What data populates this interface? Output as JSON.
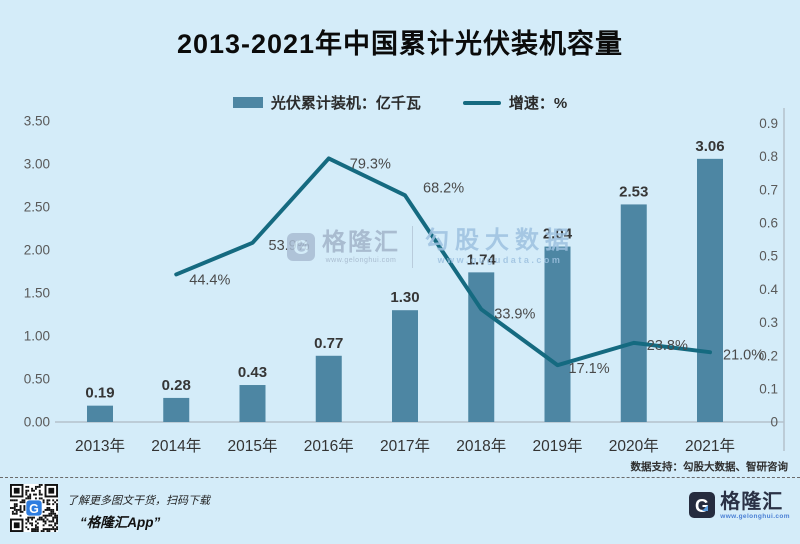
{
  "title": "2013-2021年中国累计光伏装机容量",
  "legend": {
    "bar_label": "光伏累计装机：亿千瓦",
    "line_label": "增速：%"
  },
  "chart_data": {
    "type": "bar+line",
    "categories": [
      "2013年",
      "2014年",
      "2015年",
      "2016年",
      "2017年",
      "2018年",
      "2019年",
      "2020年",
      "2021年"
    ],
    "series": [
      {
        "name": "光伏累计装机：亿千瓦",
        "type": "bar",
        "axis": "left",
        "color": "#4d86a3",
        "values": [
          0.19,
          0.28,
          0.43,
          0.77,
          1.3,
          1.74,
          2.04,
          2.53,
          3.06
        ],
        "labels": [
          "0.19",
          "0.28",
          "0.43",
          "0.77",
          "1.30",
          "1.74",
          "2.04",
          "2.53",
          "3.06"
        ]
      },
      {
        "name": "增速：%",
        "type": "line",
        "axis": "right",
        "color": "#156a80",
        "values": [
          null,
          44.4,
          53.9,
          79.3,
          68.2,
          33.9,
          17.1,
          23.8,
          21.0
        ],
        "labels": [
          null,
          "44.4%",
          "53.9%",
          "79.3%",
          "68.2%",
          "33.9%",
          "17.1%",
          "23.8%",
          "21.0%"
        ]
      }
    ],
    "left_axis": {
      "min": 0,
      "max": 3.5,
      "ticks": [
        "0.00",
        "0.50",
        "1.00",
        "1.50",
        "2.00",
        "2.50",
        "3.00",
        "3.50"
      ]
    },
    "right_axis": {
      "min": 0,
      "max": 0.9,
      "ticks": [
        "0",
        "0.1",
        "0.2",
        "0.3",
        "0.4",
        "0.5",
        "0.6",
        "0.7",
        "0.8",
        "0.9"
      ]
    },
    "grid": false,
    "legend_position": "top"
  },
  "watermark": {
    "brand": "格隆汇",
    "brand_url": "www.gelonghui.com",
    "partner": "勾股大数据",
    "partner_url": "www.gugudata.com"
  },
  "source_note": "数据支持：勾股大数据、智研咨询",
  "footer": {
    "qr_caption_line1": "了解更多图文干货，扫码下载",
    "qr_caption_line2": "“格隆汇App”",
    "logo_text": "格隆汇",
    "logo_url": "www.gelonghui.com"
  },
  "colors": {
    "background": "#d4ecf9",
    "bar": "#4d86a3",
    "line": "#156a80",
    "axis_text": "#595959",
    "label_text": "#363636",
    "qr_logo_blue": "#2e7de0"
  }
}
